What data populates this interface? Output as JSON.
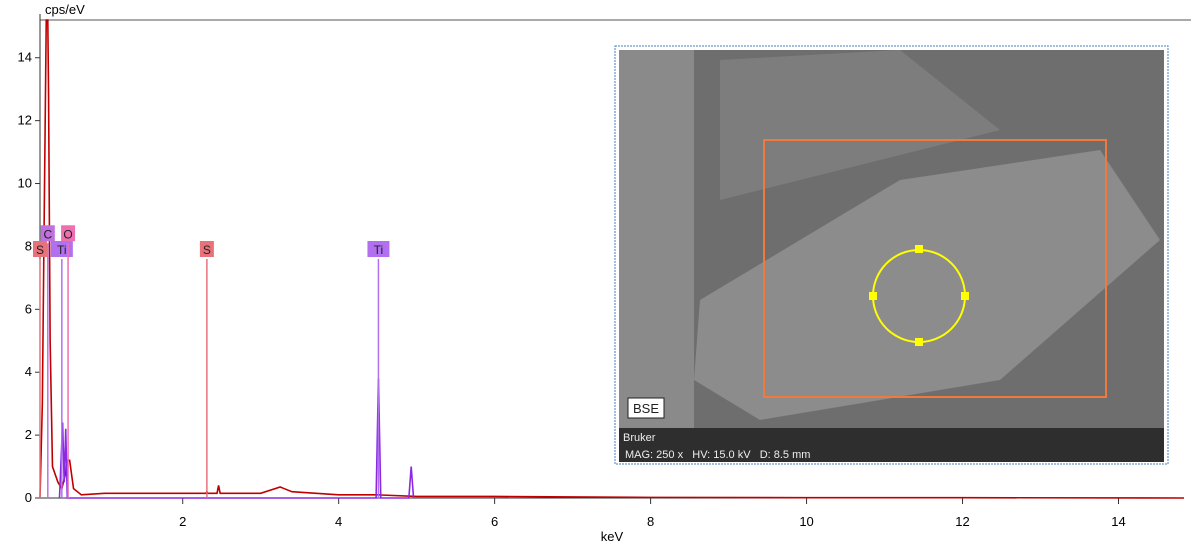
{
  "chart_data": {
    "type": "line",
    "y_label": "cps/eV",
    "x_label": "keV",
    "xlim": [
      0.17,
      14.84
    ],
    "ylim": [
      0,
      15.2
    ],
    "xticks": [
      2,
      4,
      6,
      8,
      10,
      12,
      14
    ],
    "yticks": [
      0,
      2,
      4,
      6,
      8,
      10,
      12,
      14
    ],
    "series": [
      {
        "color": "#c00000",
        "x": [
          0.17,
          0.2,
          0.22,
          0.25,
          0.27,
          0.28,
          0.3,
          0.33,
          0.4,
          0.45,
          0.5,
          0.52,
          0.55,
          0.6,
          0.7,
          1,
          1.5,
          2,
          2.3,
          2.31,
          2.32,
          2.44,
          2.46,
          2.48,
          3,
          3.25,
          3.3,
          3.4,
          4,
          4.5,
          5,
          6,
          8,
          10,
          12,
          14.84
        ],
        "values": [
          0,
          3,
          8,
          15.2,
          15.2,
          12.8,
          5,
          1,
          0.5,
          0.3,
          0.8,
          1.2,
          1.2,
          0.3,
          0.1,
          0.15,
          0.15,
          0.15,
          0.15,
          0.2,
          0.15,
          0.15,
          0.4,
          0.15,
          0.15,
          0.35,
          0.3,
          0.2,
          0.1,
          0.1,
          0.05,
          0.05,
          0.02,
          0.01,
          0.01,
          0
        ]
      },
      {
        "color": "#8a2be2",
        "x": [
          0.42,
          0.46,
          0.48,
          0.5,
          0.52,
          4.48,
          4.51,
          4.54,
          4.9,
          4.93,
          4.96
        ],
        "values": [
          0,
          2.4,
          0.5,
          2.2,
          0,
          0,
          3.8,
          0,
          0,
          1.0,
          0
        ]
      }
    ],
    "markers": [
      {
        "label": "S",
        "x": 0.17,
        "value": 7.6,
        "color": "#e8727a"
      },
      {
        "label": "C",
        "x": 0.27,
        "value": 8.1,
        "color": "#c070e0"
      },
      {
        "label": "Ti",
        "x": 0.45,
        "value": 7.6,
        "color": "#b070f0"
      },
      {
        "label": "O",
        "x": 0.53,
        "value": 8.1,
        "color": "#ee70b0"
      },
      {
        "label": "S",
        "x": 2.31,
        "value": 7.6,
        "color": "#e8727a"
      },
      {
        "label": "Ti",
        "x": 4.51,
        "value": 7.6,
        "color": "#b070f0"
      }
    ]
  },
  "inset": {
    "badge": "BSE",
    "vendor": "Bruker",
    "info": "MAG: 250 x   HV: 15.0 kV   D: 8.5 mm"
  }
}
